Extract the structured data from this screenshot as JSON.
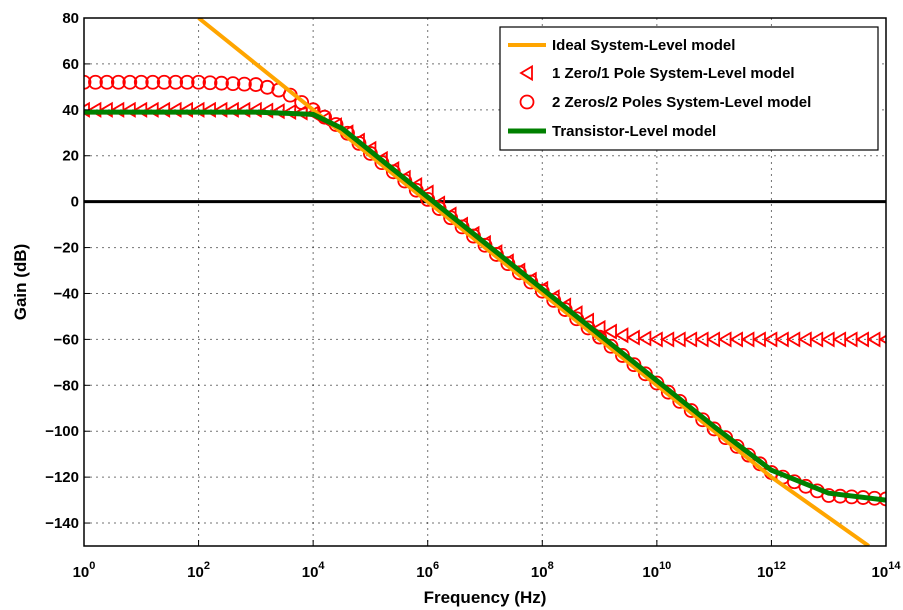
{
  "chart_data": {
    "type": "line",
    "xlabel": "Frequency (Hz)",
    "ylabel": "Gain (dB)",
    "x_scale": "log",
    "xlim": [
      1,
      100000000000000
    ],
    "ylim": [
      -150,
      80
    ],
    "x_tick_values": [
      1,
      100,
      10000,
      1000000,
      100000000,
      10000000000,
      1000000000000,
      100000000000000
    ],
    "x_tick_exponents": [
      "0",
      "2",
      "4",
      "6",
      "8",
      "10",
      "12",
      "14"
    ],
    "x_tick_base": "10",
    "y_ticks": [
      80,
      60,
      40,
      20,
      0,
      -20,
      -40,
      -60,
      -80,
      -100,
      -120,
      -140
    ],
    "y_tick_labels": [
      "80",
      "60",
      "40",
      "20",
      "0",
      "−20",
      "−40",
      "−60",
      "−80",
      "−100",
      "−120",
      "−140"
    ],
    "grid": true,
    "legend_position": "top-right",
    "reference_line": {
      "y": 0,
      "color": "#000000"
    },
    "colors": {
      "ideal": "#ffa500",
      "one_pole": "#ff0000",
      "two_poles": "#ff0000",
      "transistor": "#008000"
    },
    "series": [
      {
        "name": "Ideal System-Level model",
        "key": "ideal",
        "style": "line",
        "x": [
          100,
          10000,
          1000000,
          100000000,
          10000000000,
          1000000000000,
          50000000000000
        ],
        "y": [
          80,
          40,
          0,
          -40,
          -80,
          -120,
          -150
        ]
      },
      {
        "name": "1 Zero/1 Pole System-Level model",
        "key": "one_pole",
        "style": "triangle",
        "x": [
          1,
          10,
          100,
          1000,
          10000,
          31623,
          100000,
          316228,
          1000000,
          3162278,
          10000000,
          31622777,
          100000000,
          316227766,
          1000000000,
          3162277660,
          10000000000,
          100000000000,
          1000000000000,
          10000000000000,
          100000000000000
        ],
        "y": [
          40,
          40,
          40,
          40,
          38.5,
          32,
          23,
          12,
          4,
          -8,
          -18,
          -28,
          -38,
          -47,
          -55,
          -59,
          -60,
          -60,
          -60,
          -60,
          -60
        ]
      },
      {
        "name": "2 Zeros/2 Poles System-Level model",
        "key": "two_poles",
        "style": "circle",
        "x": [
          1,
          10,
          100,
          1000,
          3162,
          10000,
          31623,
          100000,
          1000000,
          10000000,
          100000000,
          1000000000,
          10000000000,
          100000000000,
          1000000000000,
          10000000000000,
          100000000000000
        ],
        "y": [
          52,
          52,
          52,
          51,
          48,
          40,
          32,
          21,
          1,
          -19,
          -39,
          -59,
          -79,
          -99,
          -118,
          -128,
          -129.5
        ]
      },
      {
        "name": "Transistor-Level model",
        "key": "transistor",
        "style": "line",
        "x": [
          1,
          100,
          1000,
          10000,
          31623,
          100000,
          1000000,
          10000000,
          100000000,
          1000000000,
          10000000000,
          100000000000,
          1000000000000,
          10000000000000,
          100000000000000
        ],
        "y": [
          39,
          39,
          39,
          38,
          32,
          22,
          2,
          -18,
          -38,
          -58,
          -78,
          -98,
          -117,
          -127,
          -130
        ]
      }
    ]
  }
}
